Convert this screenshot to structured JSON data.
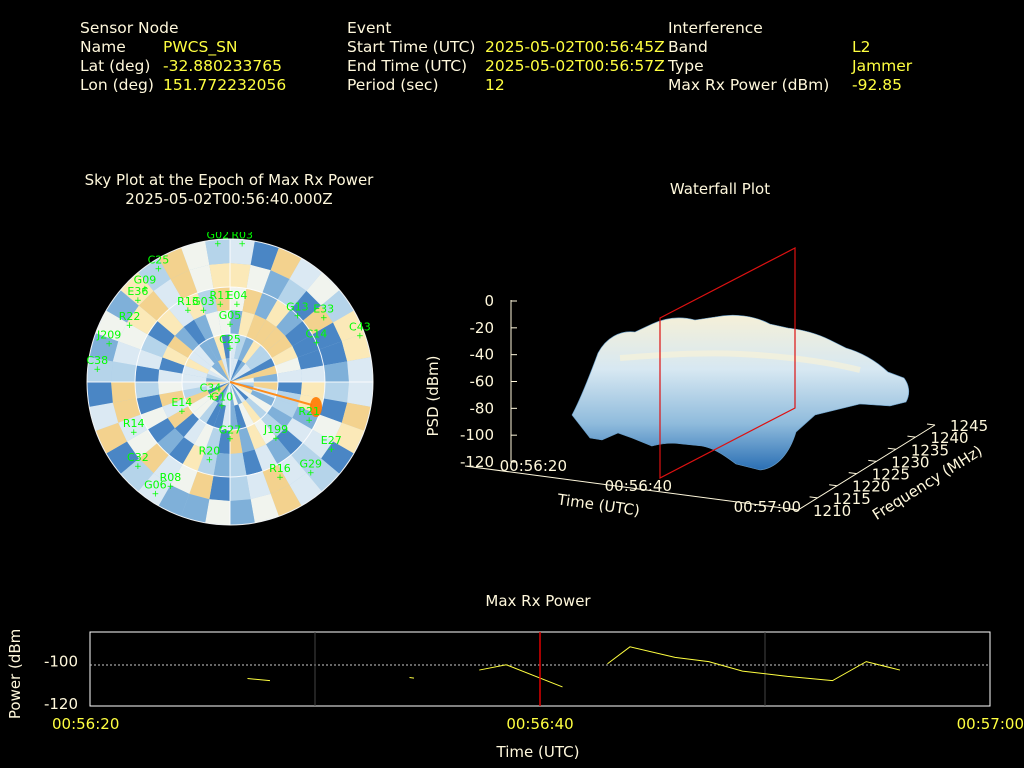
{
  "header": {
    "sensor": {
      "section": "Sensor Node",
      "name_label": "Name",
      "name": "PWCS_SN",
      "lat_label": "Lat (deg)",
      "lat": "-32.880233765",
      "lon_label": "Lon (deg)",
      "lon": "151.772232056"
    },
    "event": {
      "section": "Event",
      "start_label": "Start Time (UTC)",
      "start": "2025-05-02T00:56:45Z",
      "end_label": "End Time (UTC)",
      "end": "2025-05-02T00:56:57Z",
      "period_label": "Period (sec)",
      "period": "12"
    },
    "interference": {
      "section": "Interference",
      "band_label": "Band",
      "band": "L2",
      "type_label": "Type",
      "type": "Jammer",
      "power_label": "Max Rx Power (dBm)",
      "power": "-92.85"
    }
  },
  "colors": {
    "text": "#fff8dc",
    "value": "#ffff40",
    "satellite": "#00ff00",
    "marker": "#dd0000",
    "series": "#ffff40"
  },
  "chart_data": [
    {
      "type": "scatter",
      "title": "Sky Plot at the Epoch of Max Rx Power",
      "subtitle": "2025-05-02T00:56:40.000Z",
      "satellites": [
        {
          "id": "G02",
          "az": 355,
          "el": 2
        },
        {
          "id": "R03",
          "az": 5,
          "el": 2
        },
        {
          "id": "C25",
          "az": 328,
          "el": 5
        },
        {
          "id": "G09",
          "az": 318,
          "el": 10
        },
        {
          "id": "E36",
          "az": 312,
          "el": 12
        },
        {
          "id": "R22",
          "az": 300,
          "el": 17
        },
        {
          "id": "J209",
          "az": 288,
          "el": 10
        },
        {
          "id": "C38",
          "az": 276,
          "el": 6
        },
        {
          "id": "R13",
          "az": 330,
          "el": 37
        },
        {
          "id": "G03",
          "az": 340,
          "el": 41
        },
        {
          "id": "R11",
          "az": 353,
          "el": 40
        },
        {
          "id": "E04",
          "az": 5,
          "el": 40
        },
        {
          "id": "G05",
          "az": 0,
          "el": 53
        },
        {
          "id": "G13",
          "az": 45,
          "el": 30
        },
        {
          "id": "E33",
          "az": 55,
          "el": 18
        },
        {
          "id": "C43",
          "az": 70,
          "el": 3
        },
        {
          "id": "C14",
          "az": 65,
          "el": 30
        },
        {
          "id": "C25",
          "az": 0,
          "el": 68
        },
        {
          "id": "C34",
          "az": 235,
          "el": 75
        },
        {
          "id": "E14",
          "az": 240,
          "el": 55
        },
        {
          "id": "G10",
          "az": 200,
          "el": 75
        },
        {
          "id": "R21",
          "az": 115,
          "el": 35
        },
        {
          "id": "J199",
          "az": 140,
          "el": 45
        },
        {
          "id": "G27",
          "az": 180,
          "el": 55
        },
        {
          "id": "R16",
          "az": 152,
          "el": 23
        },
        {
          "id": "G29",
          "az": 138,
          "el": 14
        },
        {
          "id": "E27",
          "az": 123,
          "el": 14
        },
        {
          "id": "C32",
          "az": 228,
          "el": 12
        },
        {
          "id": "R08",
          "az": 210,
          "el": 15
        },
        {
          "id": "G06",
          "az": 214,
          "el": 6
        },
        {
          "id": "R14",
          "az": 243,
          "el": 22
        },
        {
          "id": "R20",
          "az": 195,
          "el": 40
        }
      ]
    },
    {
      "type": "surface",
      "title": "Waterfall Plot",
      "xlabel": "Time (UTC)",
      "ylabel": "Frequency (MHz)",
      "zlabel": "PSD (dBm)",
      "x_ticks": [
        "00:56:20",
        "00:56:40",
        "00:57:00"
      ],
      "y_ticks": [
        "1210",
        "1215",
        "1220",
        "1225",
        "1230",
        "1235",
        "1240",
        "1245"
      ],
      "z_ticks": [
        "0",
        "-20",
        "-40",
        "-60",
        "-80",
        "-100",
        "-120"
      ],
      "zlim": [
        -120,
        0
      ]
    },
    {
      "type": "line",
      "title": "Max Rx Power",
      "xlabel": "Time (UTC)",
      "ylabel": "Power (dBm)",
      "x_ticks": [
        "00:56:20",
        "00:56:40",
        "00:57:00"
      ],
      "y_ticks": [
        "-100",
        "-120"
      ],
      "xlim": [
        0,
        40
      ],
      "ylim": [
        -121,
        -86
      ],
      "marker_x": 20,
      "series": [
        {
          "segments": [
            [
              [
                7.0,
                -108
              ],
              [
                8.0,
                -109
              ]
            ],
            [
              [
                14.2,
                -107.5
              ],
              [
                14.4,
                -107.8
              ]
            ],
            [
              [
                17.3,
                -104
              ],
              [
                18.5,
                -101.5
              ],
              [
                21.0,
                -112
              ]
            ],
            [
              [
                23.0,
                -101
              ],
              [
                24.0,
                -93
              ],
              [
                26.0,
                -98
              ],
              [
                27.5,
                -100
              ],
              [
                29.0,
                -104.5
              ],
              [
                31.0,
                -107
              ],
              [
                33.0,
                -109
              ],
              [
                34.5,
                -100
              ],
              [
                36.0,
                -104
              ]
            ]
          ]
        }
      ]
    }
  ]
}
